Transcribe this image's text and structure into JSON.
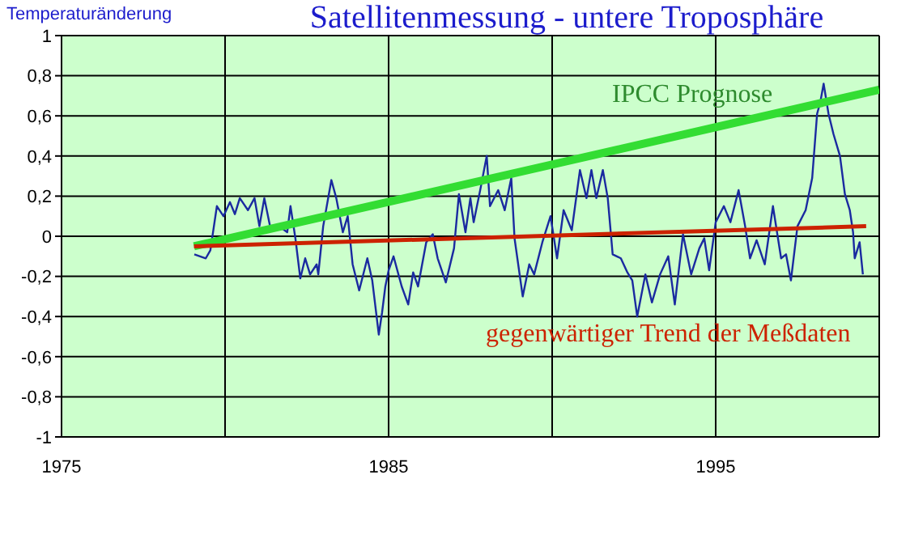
{
  "chart_data": {
    "type": "line",
    "title": "Satellitenmessung - untere Troposphäre",
    "ylabel": "Temperaturänderung",
    "xlim": [
      1975,
      2000
    ],
    "xticks": [
      1975,
      {
        "value": 1980,
        "label": null
      },
      1985,
      {
        "value": 1990,
        "label": null
      },
      1995,
      {
        "value": 2000,
        "label": null
      }
    ],
    "ylim": [
      -1,
      1
    ],
    "yticks": [
      {
        "value": -1,
        "label": "-1"
      },
      {
        "value": -0.8,
        "label": "-0,8"
      },
      {
        "value": -0.6,
        "label": "-0,6"
      },
      {
        "value": -0.4,
        "label": "-0,4"
      },
      {
        "value": -0.2,
        "label": "-0,2"
      },
      {
        "value": 0,
        "label": "0"
      },
      {
        "value": 0.2,
        "label": "0,2"
      },
      {
        "value": 0.4,
        "label": "0,4"
      },
      {
        "value": 0.6,
        "label": "0,6"
      },
      {
        "value": 0.8,
        "label": "0,8"
      },
      {
        "value": 1,
        "label": "1"
      }
    ],
    "grid": true,
    "marker": "none",
    "line_style": "solid",
    "series": [
      {
        "color": "#1a2aa0",
        "x": [
          1979.06,
          1979.41,
          1979.55,
          1979.75,
          1979.95,
          1980.15,
          1980.3,
          1980.45,
          1980.7,
          1980.9,
          1981.05,
          1981.2,
          1981.4,
          1981.65,
          1981.9,
          1982.0,
          1982.15,
          1982.3,
          1982.45,
          1982.6,
          1982.8,
          1982.85,
          1983.0,
          1983.25,
          1983.4,
          1983.6,
          1983.75,
          1983.9,
          1984.1,
          1984.35,
          1984.5,
          1984.7,
          1984.8,
          1984.9,
          1985.0,
          1985.15,
          1985.4,
          1985.6,
          1985.75,
          1985.9,
          1986.15,
          1986.35,
          1986.5,
          1986.75,
          1987.0,
          1987.15,
          1987.35,
          1987.5,
          1987.6,
          1987.8,
          1988.0,
          1988.1,
          1988.35,
          1988.55,
          1988.75,
          1988.85,
          1989.1,
          1989.3,
          1989.45,
          1989.7,
          1989.95,
          1990.15,
          1990.35,
          1990.6,
          1990.85,
          1991.05,
          1991.2,
          1991.35,
          1991.55,
          1991.7,
          1991.85,
          1992.1,
          1992.3,
          1992.45,
          1992.6,
          1992.85,
          1993.05,
          1993.3,
          1993.55,
          1993.75,
          1994.0,
          1994.25,
          1994.5,
          1994.65,
          1994.8,
          1995.0,
          1995.25,
          1995.45,
          1995.7,
          1995.9,
          1996.05,
          1996.25,
          1996.5,
          1996.75,
          1997.0,
          1997.15,
          1997.3,
          1997.5,
          1997.75,
          1997.95,
          1998.1,
          1998.2,
          1998.3,
          1998.45,
          1998.6,
          1998.8,
          1998.95,
          1999.1,
          1999.2,
          1999.25,
          1999.4,
          1999.5
        ],
        "values": [
          -0.09,
          -0.11,
          -0.07,
          0.15,
          0.1,
          0.17,
          0.11,
          0.19,
          0.13,
          0.19,
          0.05,
          0.19,
          0.03,
          0.05,
          0.02,
          0.15,
          -0.01,
          -0.21,
          -0.11,
          -0.19,
          -0.14,
          -0.19,
          0.05,
          0.28,
          0.19,
          0.02,
          0.1,
          -0.14,
          -0.27,
          -0.11,
          -0.22,
          -0.49,
          -0.38,
          -0.25,
          -0.17,
          -0.1,
          -0.25,
          -0.34,
          -0.18,
          -0.25,
          -0.03,
          0.01,
          -0.11,
          -0.23,
          -0.06,
          0.21,
          0.02,
          0.19,
          0.07,
          0.23,
          0.4,
          0.15,
          0.23,
          0.13,
          0.29,
          -0.01,
          -0.3,
          -0.14,
          -0.19,
          -0.03,
          0.1,
          -0.11,
          0.13,
          0.03,
          0.33,
          0.19,
          0.33,
          0.19,
          0.33,
          0.19,
          -0.09,
          -0.11,
          -0.18,
          -0.22,
          -0.4,
          -0.19,
          -0.33,
          -0.19,
          -0.1,
          -0.34,
          0.01,
          -0.19,
          -0.06,
          -0.01,
          -0.17,
          0.07,
          0.15,
          0.07,
          0.23,
          0.05,
          -0.11,
          -0.02,
          -0.14,
          0.15,
          -0.11,
          -0.09,
          -0.22,
          0.05,
          0.13,
          0.29,
          0.61,
          0.67,
          0.76,
          0.61,
          0.51,
          0.4,
          0.21,
          0.13,
          0.02,
          -0.11,
          -0.03,
          -0.19
        ]
      },
      {
        "name": "IPCC Prognose",
        "color": "#33dd33",
        "x": [
          1979.05,
          2000
        ],
        "values": [
          -0.05,
          0.73
        ]
      },
      {
        "name": "gegenwärtiger Trend der Meßdaten",
        "color": "#cc2200",
        "x": [
          1979.05,
          1999.6
        ],
        "values": [
          -0.05,
          0.05
        ]
      }
    ]
  }
}
